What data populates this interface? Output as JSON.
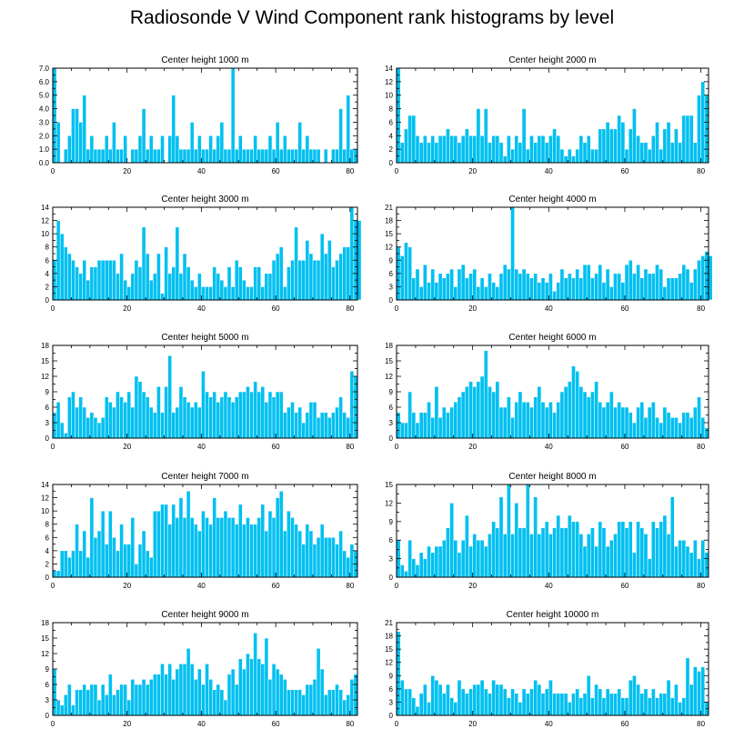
{
  "title": "Radiosonde V Wind Component rank histograms by level",
  "chart_data": [
    {
      "type": "bar",
      "title": "Center height 1000 m",
      "x_ticks": [
        "0",
        "20",
        "40",
        "60",
        "80"
      ],
      "y_ticks": [
        "0.0",
        "1.0",
        "2.0",
        "3.0",
        "4.0",
        "5.0",
        "6.0",
        "7.0"
      ],
      "ylim": [
        0,
        7
      ],
      "xlim": [
        0,
        82
      ],
      "values": [
        7,
        3,
        0,
        1,
        2,
        4,
        4,
        3,
        5,
        1,
        2,
        1,
        1,
        1,
        2,
        1,
        3,
        1,
        1,
        2,
        0,
        1,
        1,
        2,
        4,
        1,
        2,
        1,
        1,
        2,
        0,
        2,
        5,
        2,
        1,
        1,
        1,
        3,
        1,
        2,
        1,
        1,
        2,
        1,
        2,
        3,
        1,
        1,
        7,
        1,
        2,
        1,
        1,
        1,
        2,
        1,
        1,
        1,
        2,
        1,
        3,
        1,
        2,
        1,
        1,
        1,
        3,
        1,
        2,
        1,
        1,
        1,
        0,
        1,
        0,
        1,
        1,
        4,
        1,
        5,
        1,
        1
      ]
    },
    {
      "type": "bar",
      "title": "Center height 2000 m",
      "x_ticks": [
        "0",
        "20",
        "40",
        "60",
        "80"
      ],
      "y_ticks": [
        "0",
        "2",
        "4",
        "6",
        "8",
        "10",
        "12",
        "14"
      ],
      "ylim": [
        0,
        14
      ],
      "xlim": [
        0,
        82
      ],
      "values": [
        14,
        3,
        5,
        7,
        7,
        4,
        3,
        4,
        3,
        4,
        3,
        4,
        4,
        5,
        4,
        4,
        3,
        4,
        5,
        4,
        4,
        8,
        4,
        8,
        3,
        4,
        4,
        3,
        1,
        4,
        2,
        4,
        3,
        8,
        2,
        4,
        3,
        4,
        4,
        3,
        4,
        5,
        4,
        2,
        1,
        2,
        1,
        2,
        4,
        3,
        4,
        2,
        2,
        5,
        5,
        6,
        5,
        5,
        7,
        6,
        2,
        5,
        8,
        4,
        3,
        3,
        2,
        4,
        6,
        2,
        5,
        6,
        3,
        5,
        3,
        7,
        7,
        7,
        3,
        10,
        12,
        10
      ]
    },
    {
      "type": "bar",
      "title": "Center height 3000 m",
      "x_ticks": [
        "0",
        "20",
        "40",
        "60",
        "80"
      ],
      "y_ticks": [
        "0",
        "2",
        "4",
        "6",
        "8",
        "10",
        "12",
        "14"
      ],
      "ylim": [
        0,
        14
      ],
      "xlim": [
        0,
        82
      ],
      "values": [
        6,
        12,
        10,
        8,
        7,
        6,
        5,
        4,
        6,
        3,
        5,
        5,
        6,
        6,
        6,
        6,
        6,
        4,
        7,
        3,
        2,
        4,
        6,
        5,
        11,
        7,
        3,
        4,
        7,
        1,
        8,
        4,
        5,
        11,
        4,
        7,
        5,
        3,
        2,
        4,
        2,
        2,
        2,
        5,
        4,
        3,
        2,
        5,
        2,
        6,
        5,
        3,
        2,
        2,
        5,
        5,
        2,
        4,
        4,
        6,
        7,
        8,
        2,
        5,
        6,
        11,
        6,
        6,
        9,
        7,
        6,
        6,
        10,
        7,
        9,
        5,
        6,
        7,
        8,
        8,
        14,
        12,
        12
      ]
    },
    {
      "type": "bar",
      "title": "Center height 4000 m",
      "x_ticks": [
        "0",
        "20",
        "40",
        "60",
        "80"
      ],
      "y_ticks": [
        "0",
        "3",
        "6",
        "9",
        "12",
        "15",
        "18",
        "21"
      ],
      "ylim": [
        0,
        21
      ],
      "xlim": [
        0,
        82
      ],
      "values": [
        12,
        10,
        13,
        12,
        5,
        7,
        3,
        8,
        4,
        7,
        4,
        6,
        5,
        6,
        7,
        3,
        7,
        8,
        5,
        6,
        7,
        3,
        5,
        3,
        6,
        4,
        3,
        6,
        8,
        7,
        21,
        7,
        6,
        7,
        6,
        5,
        6,
        4,
        5,
        4,
        6,
        2,
        4,
        7,
        5,
        6,
        5,
        7,
        5,
        8,
        8,
        5,
        6,
        8,
        4,
        7,
        3,
        6,
        6,
        4,
        8,
        9,
        6,
        8,
        5,
        7,
        6,
        6,
        8,
        7,
        3,
        5,
        5,
        5,
        6,
        8,
        7,
        4,
        7,
        9,
        10,
        11,
        10
      ]
    },
    {
      "type": "bar",
      "title": "Center height 5000 m",
      "x_ticks": [
        "0",
        "20",
        "40",
        "60",
        "80"
      ],
      "y_ticks": [
        "0",
        "3",
        "6",
        "9",
        "12",
        "15",
        "18"
      ],
      "ylim": [
        0,
        18
      ],
      "xlim": [
        0,
        82
      ],
      "values": [
        5,
        7,
        3,
        1,
        8,
        9,
        6,
        8,
        6,
        4,
        5,
        4,
        3,
        4,
        8,
        7,
        6,
        9,
        8,
        7,
        9,
        6,
        12,
        11,
        9,
        8,
        6,
        5,
        10,
        5,
        10,
        16,
        5,
        6,
        10,
        8,
        7,
        6,
        7,
        6,
        13,
        9,
        8,
        9,
        7,
        8,
        9,
        8,
        7,
        8,
        9,
        9,
        10,
        9,
        11,
        9,
        10,
        7,
        9,
        8,
        9,
        9,
        5,
        6,
        7,
        5,
        6,
        3,
        5,
        7,
        7,
        4,
        5,
        5,
        4,
        5,
        6,
        8,
        5,
        4,
        13,
        12
      ]
    },
    {
      "type": "bar",
      "title": "Center height 6000 m",
      "x_ticks": [
        "0",
        "20",
        "40",
        "60",
        "80"
      ],
      "y_ticks": [
        "0",
        "3",
        "6",
        "9",
        "12",
        "15",
        "18"
      ],
      "ylim": [
        0,
        18
      ],
      "xlim": [
        0,
        82
      ],
      "values": [
        5,
        3,
        3,
        9,
        5,
        3,
        5,
        5,
        7,
        4,
        10,
        4,
        6,
        5,
        6,
        7,
        8,
        9,
        10,
        11,
        10,
        11,
        12,
        17,
        10,
        9,
        11,
        6,
        6,
        8,
        4,
        7,
        9,
        7,
        7,
        6,
        8,
        10,
        7,
        6,
        7,
        5,
        7,
        9,
        10,
        11,
        14,
        13,
        10,
        9,
        8,
        9,
        11,
        7,
        6,
        7,
        9,
        6,
        7,
        6,
        6,
        5,
        3,
        6,
        7,
        4,
        6,
        7,
        4,
        3,
        6,
        5,
        4,
        4,
        3,
        5,
        5,
        4,
        6,
        8,
        4,
        2
      ]
    },
    {
      "type": "bar",
      "title": "Center height 7000 m",
      "x_ticks": [
        "0",
        "20",
        "40",
        "60",
        "80"
      ],
      "y_ticks": [
        "0",
        "2",
        "4",
        "6",
        "8",
        "10",
        "12",
        "14"
      ],
      "ylim": [
        0,
        14
      ],
      "xlim": [
        0,
        82
      ],
      "values": [
        1,
        1,
        4,
        4,
        3,
        4,
        8,
        4,
        7,
        3,
        12,
        6,
        7,
        10,
        5,
        10,
        6,
        4,
        8,
        5,
        5,
        9,
        2,
        5,
        7,
        4,
        3,
        10,
        10,
        11,
        11,
        8,
        11,
        9,
        12,
        9,
        13,
        9,
        8,
        7,
        10,
        9,
        8,
        12,
        9,
        9,
        10,
        9,
        9,
        8,
        11,
        8,
        9,
        8,
        8,
        9,
        11,
        7,
        10,
        9,
        12,
        13,
        7,
        10,
        9,
        8,
        7,
        5,
        8,
        7,
        5,
        6,
        8,
        6,
        6,
        6,
        5,
        7,
        4,
        3,
        5,
        4
      ]
    },
    {
      "type": "bar",
      "title": "Center height 8000 m",
      "x_ticks": [
        "0",
        "20",
        "40",
        "60",
        "80"
      ],
      "y_ticks": [
        "0",
        "3",
        "6",
        "9",
        "12",
        "15"
      ],
      "ylim": [
        0,
        15
      ],
      "xlim": [
        0,
        82
      ],
      "values": [
        6,
        2,
        1,
        6,
        3,
        2,
        4,
        3,
        5,
        4,
        5,
        5,
        6,
        8,
        12,
        6,
        4,
        6,
        10,
        5,
        7,
        6,
        6,
        5,
        7,
        9,
        8,
        13,
        7,
        15,
        7,
        12,
        8,
        8,
        15,
        7,
        13,
        7,
        8,
        9,
        7,
        8,
        10,
        8,
        8,
        10,
        9,
        9,
        7,
        5,
        7,
        8,
        5,
        9,
        8,
        5,
        6,
        7,
        9,
        9,
        8,
        9,
        4,
        9,
        8,
        7,
        3,
        9,
        8,
        9,
        10,
        7,
        13,
        5,
        6,
        6,
        5,
        4,
        6,
        3,
        6,
        4
      ]
    },
    {
      "type": "bar",
      "title": "Center height 9000 m",
      "x_ticks": [
        "0",
        "20",
        "40",
        "60",
        "80"
      ],
      "y_ticks": [
        "0",
        "3",
        "6",
        "9",
        "12",
        "15",
        "18"
      ],
      "ylim": [
        0,
        18
      ],
      "xlim": [
        0,
        82
      ],
      "values": [
        9,
        3,
        2,
        4,
        6,
        2,
        5,
        5,
        6,
        5,
        6,
        6,
        3,
        6,
        4,
        8,
        4,
        5,
        6,
        6,
        3,
        7,
        6,
        6,
        7,
        6,
        7,
        8,
        8,
        10,
        8,
        10,
        7,
        9,
        10,
        10,
        13,
        10,
        7,
        9,
        6,
        10,
        7,
        5,
        6,
        5,
        3,
        8,
        9,
        6,
        11,
        9,
        12,
        11,
        16,
        11,
        10,
        15,
        7,
        10,
        9,
        8,
        7,
        5,
        5,
        5,
        5,
        4,
        6,
        6,
        7,
        13,
        9,
        4,
        5,
        5,
        6,
        5,
        3,
        4,
        7,
        8
      ]
    },
    {
      "type": "bar",
      "title": "Center height 10000 m",
      "x_ticks": [
        "0",
        "20",
        "40",
        "60",
        "80"
      ],
      "y_ticks": [
        "0",
        "3",
        "6",
        "9",
        "12",
        "15",
        "18",
        "21"
      ],
      "ylim": [
        0,
        21
      ],
      "xlim": [
        0,
        82
      ],
      "values": [
        19,
        8,
        6,
        6,
        4,
        2,
        5,
        7,
        3,
        9,
        8,
        7,
        5,
        7,
        4,
        3,
        8,
        6,
        5,
        6,
        7,
        7,
        8,
        6,
        5,
        8,
        7,
        7,
        6,
        4,
        6,
        5,
        3,
        6,
        5,
        6,
        8,
        7,
        5,
        6,
        8,
        5,
        5,
        5,
        5,
        3,
        5,
        6,
        4,
        5,
        9,
        4,
        7,
        6,
        4,
        6,
        5,
        5,
        6,
        4,
        4,
        8,
        9,
        7,
        5,
        6,
        4,
        6,
        4,
        5,
        5,
        8,
        4,
        7,
        3,
        4,
        13,
        7,
        11,
        10,
        11,
        3
      ]
    }
  ]
}
